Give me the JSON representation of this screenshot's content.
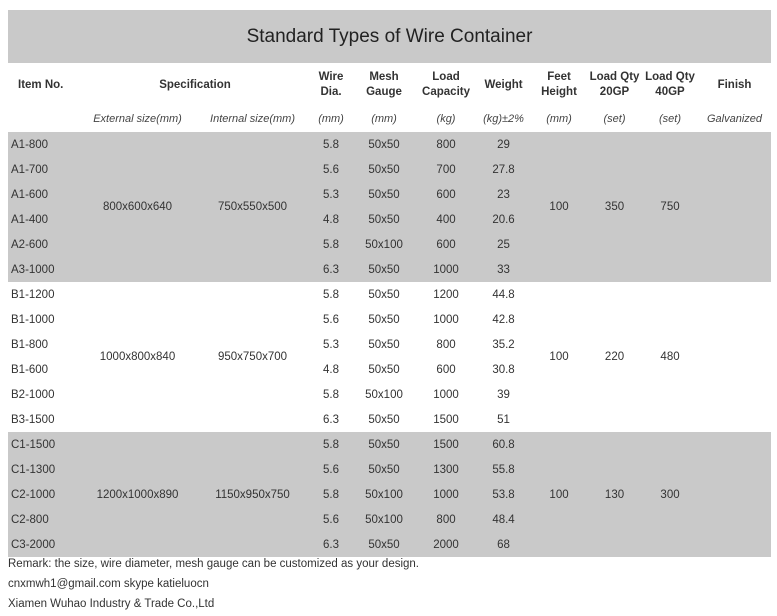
{
  "title": "Standard Types of Wire Container",
  "headers": {
    "item": "Item No.",
    "spec": "Specification",
    "wire_l1": "Wire",
    "wire_l2": "Dia.",
    "mesh_l1": "Mesh",
    "mesh_l2": "Gauge",
    "load_l1": "Load",
    "load_l2": "Capacity",
    "weight": "Weight",
    "feet_l1": "Feet",
    "feet_l2": "Height",
    "qty20_l1": "Load Qty",
    "qty20_l2": "20GP",
    "qty40_l1": "Load Qty",
    "qty40_l2": "40GP",
    "finish": "Finish"
  },
  "units": {
    "external": "External size(mm)",
    "internal": "Internal size(mm)",
    "wire": "(mm)",
    "mesh": "(mm)",
    "load": "(kg)",
    "weight": "(kg)±2%",
    "feet": "(mm)",
    "qty20": "(set)",
    "qty40": "(set)",
    "finish": "Galvanized"
  },
  "groups": [
    {
      "external": "800x600x640",
      "internal": "750x550x500",
      "feet": "100",
      "qty20": "350",
      "qty40": "750",
      "rows": [
        {
          "item": "A1-800",
          "wire": "5.8",
          "mesh": "50x50",
          "load": "800",
          "weight": "29"
        },
        {
          "item": "A1-700",
          "wire": "5.6",
          "mesh": "50x50",
          "load": "700",
          "weight": "27.8"
        },
        {
          "item": "A1-600",
          "wire": "5.3",
          "mesh": "50x50",
          "load": "600",
          "weight": "23"
        },
        {
          "item": "A1-400",
          "wire": "4.8",
          "mesh": "50x50",
          "load": "400",
          "weight": "20.6"
        },
        {
          "item": "A2-600",
          "wire": "5.8",
          "mesh": "50x100",
          "load": "600",
          "weight": "25"
        },
        {
          "item": "A3-1000",
          "wire": "6.3",
          "mesh": "50x50",
          "load": "1000",
          "weight": "33"
        }
      ]
    },
    {
      "external": "1000x800x840",
      "internal": "950x750x700",
      "feet": "100",
      "qty20": "220",
      "qty40": "480",
      "rows": [
        {
          "item": "B1-1200",
          "wire": "5.8",
          "mesh": "50x50",
          "load": "1200",
          "weight": "44.8"
        },
        {
          "item": "B1-1000",
          "wire": "5.6",
          "mesh": "50x50",
          "load": "1000",
          "weight": "42.8"
        },
        {
          "item": "B1-800",
          "wire": "5.3",
          "mesh": "50x50",
          "load": "800",
          "weight": "35.2"
        },
        {
          "item": "B1-600",
          "wire": "4.8",
          "mesh": "50x50",
          "load": "600",
          "weight": "30.8"
        },
        {
          "item": "B2-1000",
          "wire": "5.8",
          "mesh": "50x100",
          "load": "1000",
          "weight": "39"
        },
        {
          "item": "B3-1500",
          "wire": "6.3",
          "mesh": "50x50",
          "load": "1500",
          "weight": "51"
        }
      ]
    },
    {
      "external": "1200x1000x890",
      "internal": "1150x950x750",
      "feet": "100",
      "qty20": "130",
      "qty40": "300",
      "rows": [
        {
          "item": "C1-1500",
          "wire": "5.8",
          "mesh": "50x50",
          "load": "1500",
          "weight": "60.8"
        },
        {
          "item": "C1-1300",
          "wire": "5.6",
          "mesh": "50x50",
          "load": "1300",
          "weight": "55.8"
        },
        {
          "item": "C2-1000",
          "wire": "5.8",
          "mesh": "50x100",
          "load": "1000",
          "weight": "53.8"
        },
        {
          "item": "C2-800",
          "wire": "5.6",
          "mesh": "50x100",
          "load": "800",
          "weight": "48.4"
        },
        {
          "item": "C3-2000",
          "wire": "6.3",
          "mesh": "50x50",
          "load": "2000",
          "weight": "68"
        }
      ]
    }
  ],
  "footer": {
    "remark": "Remark: the size, wire diameter, mesh gauge can be customized as your design.",
    "contact": "cnxmwh1@gmail.com skype katieluocn",
    "company": "Xiamen Wuhao Industry & Trade Co.,Ltd"
  }
}
